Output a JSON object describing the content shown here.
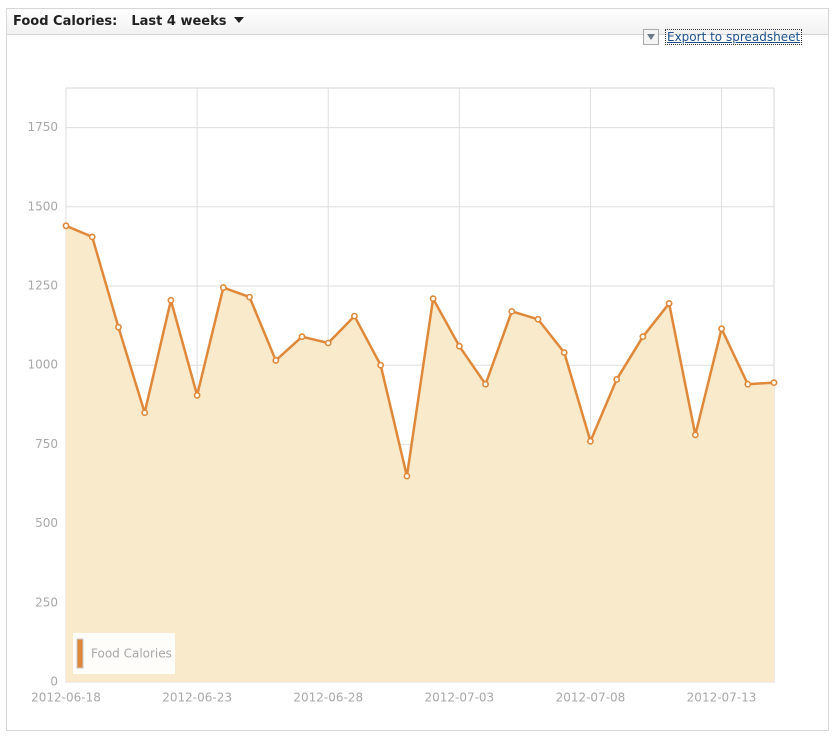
{
  "header": {
    "label": "Food Calories:",
    "range": "Last 4 weeks"
  },
  "export_link": "Export to spreadsheet",
  "chart_data": {
    "type": "area",
    "x": [
      "2012-06-18",
      "2012-06-19",
      "2012-06-20",
      "2012-06-21",
      "2012-06-22",
      "2012-06-23",
      "2012-06-24",
      "2012-06-25",
      "2012-06-26",
      "2012-06-27",
      "2012-06-28",
      "2012-06-29",
      "2012-06-30",
      "2012-07-01",
      "2012-07-02",
      "2012-07-03",
      "2012-07-04",
      "2012-07-05",
      "2012-07-06",
      "2012-07-07",
      "2012-07-08",
      "2012-07-09",
      "2012-07-10",
      "2012-07-11",
      "2012-07-12",
      "2012-07-13",
      "2012-07-14",
      "2012-07-15"
    ],
    "series": [
      {
        "name": "Food Calories",
        "color": "#e0883a",
        "fill": "#f8eacb",
        "values": [
          1440,
          1405,
          1120,
          850,
          1205,
          905,
          1245,
          1215,
          1015,
          1090,
          1070,
          1155,
          1000,
          650,
          1210,
          1060,
          940,
          1170,
          1145,
          1040,
          760,
          955,
          1090,
          1195,
          780,
          1115,
          940,
          945
        ]
      }
    ],
    "xlim": [
      "2012-06-18",
      "2012-07-15"
    ],
    "xticks": [
      "2012-06-18",
      "2012-06-23",
      "2012-06-28",
      "2012-07-03",
      "2012-07-08",
      "2012-07-13"
    ],
    "ylim": [
      0,
      1875
    ],
    "yticks": [
      0,
      250,
      500,
      750,
      1000,
      1250,
      1500,
      1750
    ],
    "grid": true,
    "legend": "lower left"
  }
}
